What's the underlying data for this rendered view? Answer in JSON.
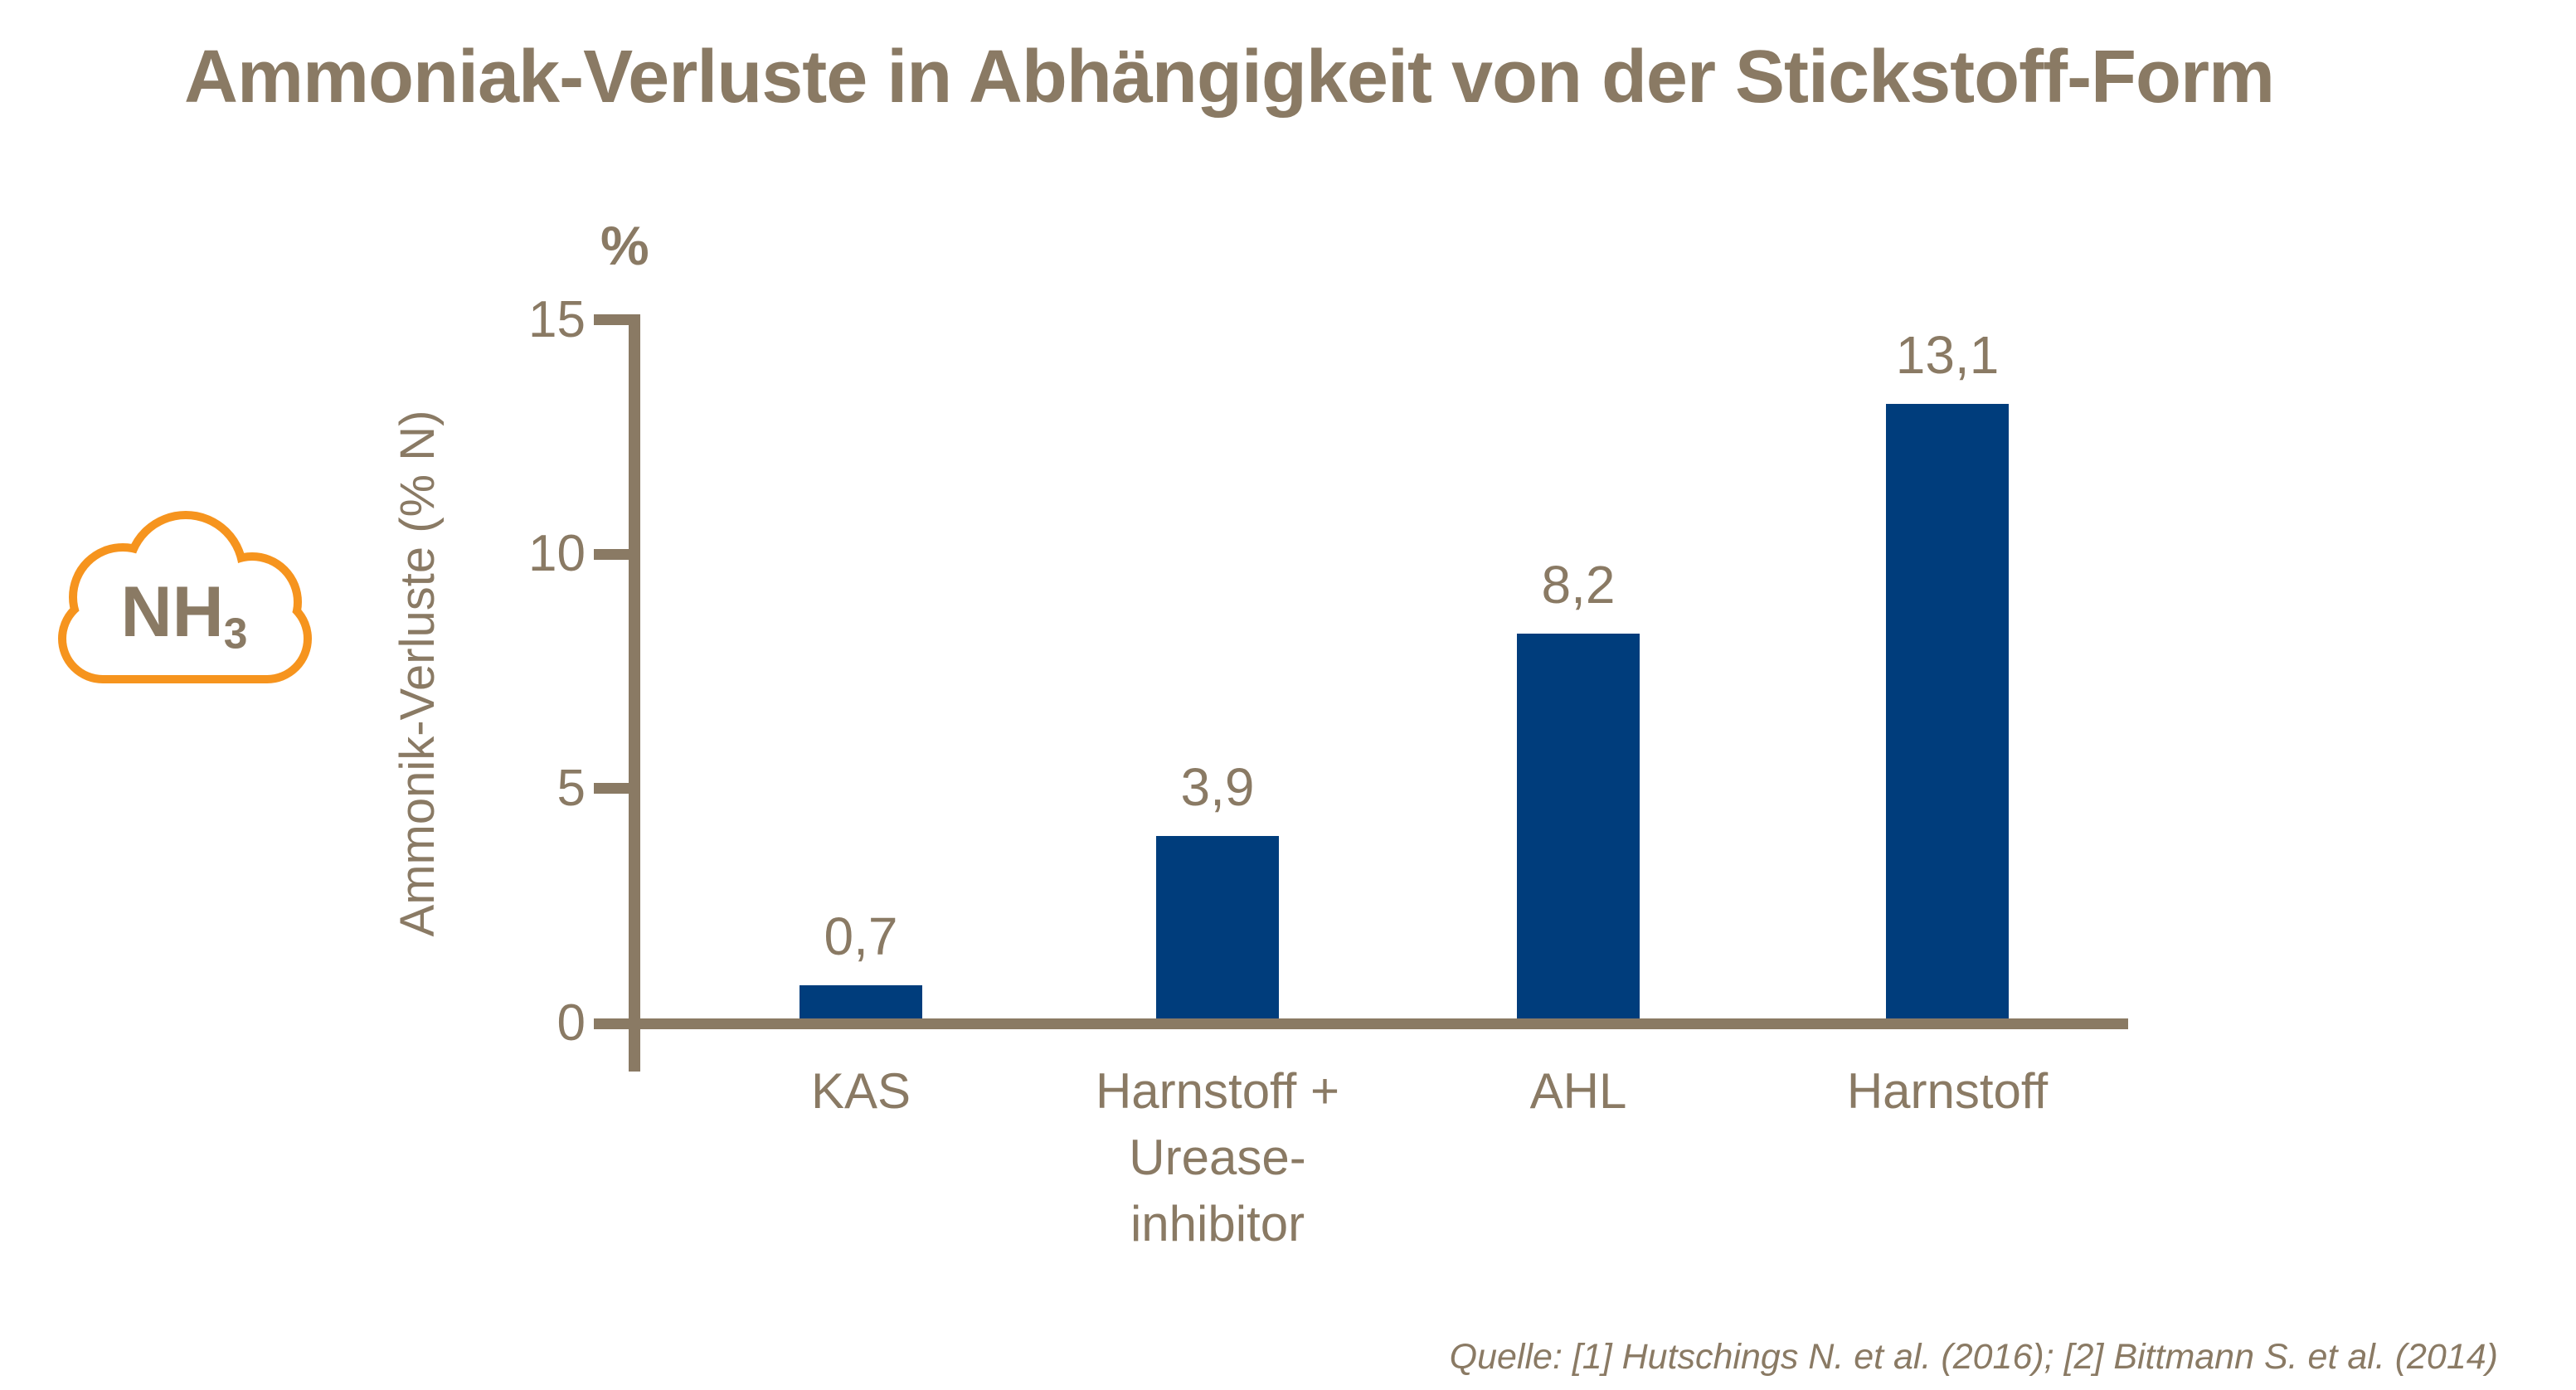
{
  "title": "Ammoniak-Verluste in Abhängigkeit von der Stickstoff-Form",
  "nh3_cloud": {
    "formula": "NH",
    "subscript": "3"
  },
  "source": "Quelle: [1] Hutschings N. et al. (2016); [2] Bittmann S. et al. (2014)",
  "colors": {
    "bar": "#003d7c",
    "axis_text": "#8a7a64",
    "cloud_outline": "#f6941e",
    "background": "#ffffff"
  },
  "chart_data": {
    "type": "bar",
    "title": "Ammoniak-Verluste in Abhängigkeit von der Stickstoff-Form",
    "categories": [
      "KAS",
      "Harnstoff + Urease-inhibitor",
      "AHL",
      "Harnstoff"
    ],
    "category_lines": [
      [
        "KAS"
      ],
      [
        "Harnstoff +",
        "Urease-",
        "inhibitor"
      ],
      [
        "AHL"
      ],
      [
        "Harnstoff"
      ]
    ],
    "values": [
      0.7,
      3.9,
      8.2,
      13.1
    ],
    "value_labels": [
      "0,7",
      "3,9",
      "8,2",
      "13,1"
    ],
    "ylabel": "Ammonik-Verluste (% N)",
    "y_unit": "%",
    "ylim": [
      0,
      15
    ],
    "yticks": [
      0,
      5,
      10,
      15
    ],
    "ytick_labels": [
      "0",
      "5",
      "10",
      "15"
    ],
    "grid": false,
    "legend": false,
    "bar_color": "#003d7c",
    "axis_color": "#8a7a64"
  }
}
